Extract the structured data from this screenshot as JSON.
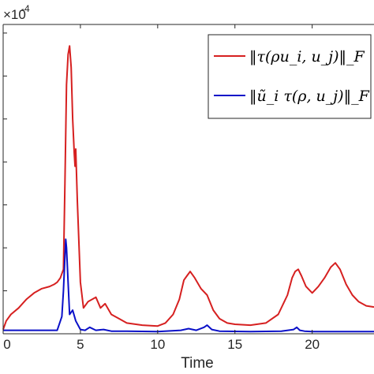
{
  "chart_data": {
    "type": "line",
    "xlabel": "Time",
    "ylabel": "",
    "xlim": [
      0,
      24
    ],
    "ylim": [
      0,
      7.2
    ],
    "y_multiplier_label": "×10",
    "y_exponent_label": "-4",
    "x_ticks": [
      0,
      5,
      10,
      15,
      20
    ],
    "x_tick_labels": [
      "0",
      "5",
      "10",
      "15",
      "20"
    ],
    "y_ticks": [
      0,
      1,
      2,
      3,
      4,
      5,
      6,
      7
    ],
    "grid": false,
    "legend_position": "top-right",
    "series": [
      {
        "name": "‖τ(ρu_i, u_j)‖_F",
        "color": "#d62020",
        "x": [
          0,
          0.2,
          0.5,
          1.0,
          1.5,
          2.0,
          2.5,
          3.0,
          3.3,
          3.5,
          3.7,
          3.9,
          4.0,
          4.1,
          4.2,
          4.3,
          4.4,
          4.5,
          4.6,
          4.65,
          4.7,
          4.8,
          5.0,
          5.2,
          5.5,
          6.0,
          6.3,
          6.6,
          7.0,
          7.5,
          8.0,
          9.0,
          10.0,
          10.5,
          11.0,
          11.4,
          11.7,
          11.9,
          12.1,
          12.4,
          12.8,
          13.2,
          13.6,
          14.0,
          14.5,
          15.0,
          16.0,
          17.0,
          17.8,
          18.4,
          18.7,
          18.9,
          19.1,
          19.3,
          19.6,
          20.0,
          20.4,
          20.8,
          21.2,
          21.5,
          21.8,
          22.2,
          22.6,
          23.0,
          23.5,
          24.0
        ],
        "y": [
          0.1,
          0.3,
          0.45,
          0.6,
          0.8,
          0.95,
          1.05,
          1.1,
          1.15,
          1.2,
          1.3,
          1.5,
          3.5,
          5.8,
          6.5,
          6.7,
          6.2,
          5.0,
          4.2,
          3.9,
          4.3,
          3.1,
          1.2,
          0.6,
          0.75,
          0.85,
          0.6,
          0.7,
          0.45,
          0.35,
          0.25,
          0.2,
          0.18,
          0.25,
          0.45,
          0.8,
          1.25,
          1.35,
          1.45,
          1.3,
          1.05,
          0.9,
          0.55,
          0.35,
          0.25,
          0.22,
          0.2,
          0.25,
          0.45,
          0.9,
          1.3,
          1.45,
          1.5,
          1.35,
          1.1,
          0.95,
          1.1,
          1.3,
          1.55,
          1.65,
          1.5,
          1.15,
          0.9,
          0.75,
          0.65,
          0.62
        ]
      },
      {
        "name": "‖ũ_i τ(ρ, u_j)‖_F",
        "color": "#0a10c8",
        "x": [
          0,
          1.0,
          2.0,
          3.0,
          3.5,
          3.8,
          3.9,
          4.0,
          4.05,
          4.1,
          4.2,
          4.3,
          4.5,
          4.7,
          5.0,
          5.3,
          5.6,
          6.0,
          6.5,
          7.0,
          8.0,
          10.0,
          11.5,
          12.0,
          12.5,
          13.0,
          13.2,
          13.5,
          14.0,
          16.0,
          18.0,
          18.8,
          19.0,
          19.2,
          19.5,
          20.0,
          22.0,
          24.0
        ],
        "y": [
          0.08,
          0.08,
          0.08,
          0.08,
          0.08,
          0.4,
          1.0,
          1.8,
          2.2,
          2.0,
          1.2,
          0.45,
          0.55,
          0.3,
          0.1,
          0.08,
          0.15,
          0.08,
          0.1,
          0.06,
          0.06,
          0.05,
          0.08,
          0.12,
          0.08,
          0.15,
          0.2,
          0.1,
          0.06,
          0.05,
          0.06,
          0.1,
          0.15,
          0.08,
          0.06,
          0.05,
          0.05,
          0.05
        ]
      }
    ]
  }
}
